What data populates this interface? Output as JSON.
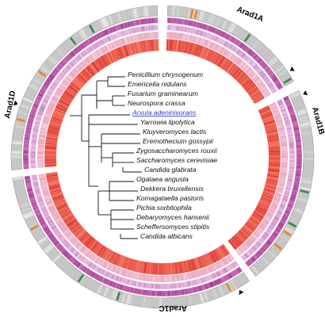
{
  "figure": {
    "chromosomes": [
      {
        "label": "Arad1A",
        "start_deg": 2,
        "end_deg": 60
      },
      {
        "label": "Arad1B",
        "start_deg": 64,
        "end_deg": 142
      },
      {
        "label": "Arad1C",
        "start_deg": 145,
        "end_deg": 262
      },
      {
        "label": "Arad1D",
        "start_deg": 265,
        "end_deg": 358
      }
    ],
    "rings": [
      {
        "name": "outer-gene-density-ring",
        "colors": [
          "#e7e7e7",
          "#dcdcdc",
          "#d0d8cf",
          "#c6c6c6"
        ]
      },
      {
        "name": "purple-ring-1",
        "colors": [
          "#b04a9e",
          "#c061ad",
          "#9c3b8e",
          "#d27ec0"
        ]
      },
      {
        "name": "purple-ring-2",
        "colors": [
          "#e4b5dc",
          "#d79ace",
          "#c882bf",
          "#f0cde9"
        ]
      },
      {
        "name": "pink-ring",
        "colors": [
          "#f3c6d7",
          "#eeb0c8",
          "#f7d9e4",
          "#e89bb8"
        ]
      },
      {
        "name": "red-ring",
        "colors": [
          "#e8453a",
          "#f06a58",
          "#d9302a",
          "#f48a78"
        ]
      }
    ],
    "markers": [
      {
        "name": "marker-arad1a",
        "angle_deg": 56
      },
      {
        "name": "marker-arad1b",
        "angle_deg": 66
      },
      {
        "name": "marker-arad1c",
        "angle_deg": 150
      },
      {
        "name": "marker-arad1d",
        "angle_deg": 290
      }
    ],
    "species": [
      {
        "name": "Penicillium chrysogenum",
        "highlight": false
      },
      {
        "name": "Emericella nidulans",
        "highlight": false
      },
      {
        "name": "Fusarium graminearum",
        "highlight": false
      },
      {
        "name": "Neurospora crassa",
        "highlight": false
      },
      {
        "name": "Arxula adeninivorans",
        "highlight": true,
        "color": "#2b3fd6"
      },
      {
        "name": "Yarrowia lipolytica",
        "highlight": false
      },
      {
        "name": "Kluyveromyces lactis",
        "highlight": false
      },
      {
        "name": "Eremothecium gossypii",
        "highlight": false
      },
      {
        "name": "Zygosaccharomyces rouxii",
        "highlight": false
      },
      {
        "name": "Saccharomyces cerevisiae",
        "highlight": false
      },
      {
        "name": "Candida glabrata",
        "highlight": false
      },
      {
        "name": "Ogataea angusta",
        "highlight": false
      },
      {
        "name": "Dekkera bruxellensis",
        "highlight": false
      },
      {
        "name": "Komagataella pastoris",
        "highlight": false
      },
      {
        "name": "Pichia sorbitophila",
        "highlight": false
      },
      {
        "name": "Debaryomyces hansenii",
        "highlight": false
      },
      {
        "name": "Scheffersomyces stipitis",
        "highlight": false
      },
      {
        "name": "Candida albicans",
        "highlight": false
      }
    ]
  }
}
